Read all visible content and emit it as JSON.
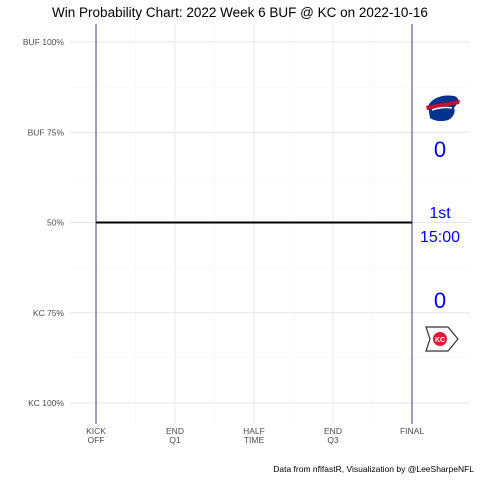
{
  "chart_data": {
    "type": "line",
    "title": "Win Probability Chart: 2022 Week 6 BUF @ KC on 2022-10-16",
    "y_tick_labels": [
      "BUF 100%",
      "BUF 75%",
      "50%",
      "KC 75%",
      "KC 100%"
    ],
    "y_tick_values": [
      100,
      75,
      50,
      25,
      0
    ],
    "ylim": [
      0,
      100
    ],
    "x_tick_labels": [
      [
        "KICK",
        "OFF"
      ],
      [
        "END",
        "Q1"
      ],
      [
        "HALF",
        "TIME"
      ],
      [
        "END",
        "Q3"
      ],
      [
        "FINAL"
      ]
    ],
    "x_tick_values": [
      0,
      15,
      30,
      45,
      60
    ],
    "xlim": [
      0,
      60
    ],
    "series": [
      {
        "color": "#000000",
        "x": [
          0,
          60
        ],
        "y": [
          50,
          50
        ]
      }
    ],
    "home_away": {
      "away": {
        "team": "BUF",
        "score": "0",
        "color": "#0000ff",
        "logo": "bills-logo"
      },
      "home": {
        "team": "KC",
        "score": "0",
        "color": "#0000ff",
        "logo": "chiefs-logo"
      }
    },
    "game_clock": {
      "quarter": "1st",
      "time": "15:00"
    },
    "grid": true,
    "caption": "Data from nflfastR, Visualization by @LeeSharpeNFL"
  },
  "colors": {
    "vline": "#3b3b8f",
    "grid_major": "#e6e6e6",
    "grid_minor": "#f3f3f3",
    "score_text": "#0000ff"
  }
}
